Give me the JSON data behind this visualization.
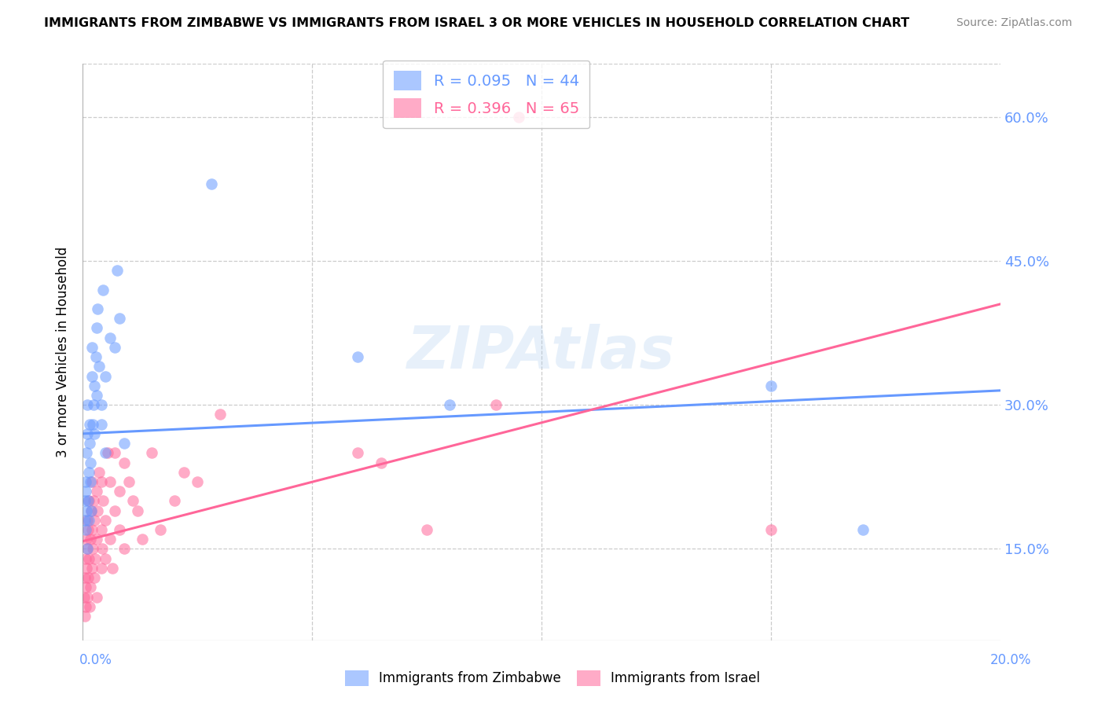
{
  "title": "IMMIGRANTS FROM ZIMBABWE VS IMMIGRANTS FROM ISRAEL 3 OR MORE VEHICLES IN HOUSEHOLD CORRELATION CHART",
  "source": "Source: ZipAtlas.com",
  "ylabel": "3 or more Vehicles in Household",
  "ytick_values": [
    0.15,
    0.3,
    0.45,
    0.6
  ],
  "xlim": [
    0.0,
    0.2
  ],
  "ylim": [
    0.055,
    0.655
  ],
  "color_zimbabwe": "#6699ff",
  "color_israel": "#ff6699",
  "zim_trend_x0": 0.0,
  "zim_trend_y0": 0.27,
  "zim_trend_x1": 0.2,
  "zim_trend_y1": 0.315,
  "isr_trend_x0": 0.0,
  "isr_trend_y0": 0.158,
  "isr_trend_x1": 0.2,
  "isr_trend_y1": 0.405,
  "zim_x": [
    0.0004,
    0.0005,
    0.0006,
    0.0007,
    0.0007,
    0.0008,
    0.0009,
    0.001,
    0.001,
    0.001,
    0.0012,
    0.0013,
    0.0014,
    0.0015,
    0.0015,
    0.0016,
    0.0017,
    0.0018,
    0.002,
    0.002,
    0.0022,
    0.0023,
    0.0025,
    0.0025,
    0.0028,
    0.003,
    0.003,
    0.0032,
    0.0035,
    0.004,
    0.004,
    0.0045,
    0.005,
    0.005,
    0.006,
    0.007,
    0.0075,
    0.008,
    0.009,
    0.028,
    0.06,
    0.08,
    0.15,
    0.17
  ],
  "zim_y": [
    0.18,
    0.2,
    0.22,
    0.17,
    0.21,
    0.19,
    0.25,
    0.15,
    0.27,
    0.3,
    0.2,
    0.23,
    0.18,
    0.26,
    0.28,
    0.22,
    0.24,
    0.19,
    0.33,
    0.36,
    0.28,
    0.3,
    0.27,
    0.32,
    0.35,
    0.31,
    0.38,
    0.4,
    0.34,
    0.3,
    0.28,
    0.42,
    0.25,
    0.33,
    0.37,
    0.36,
    0.44,
    0.39,
    0.26,
    0.53,
    0.35,
    0.3,
    0.32,
    0.17
  ],
  "isr_x": [
    0.0003,
    0.0004,
    0.0005,
    0.0006,
    0.0006,
    0.0007,
    0.0008,
    0.0009,
    0.001,
    0.001,
    0.001,
    0.0011,
    0.0012,
    0.0013,
    0.0014,
    0.0015,
    0.0016,
    0.0017,
    0.0018,
    0.002,
    0.002,
    0.002,
    0.0022,
    0.0023,
    0.0025,
    0.0025,
    0.0027,
    0.003,
    0.003,
    0.003,
    0.0032,
    0.0035,
    0.004,
    0.004,
    0.004,
    0.0042,
    0.0045,
    0.005,
    0.005,
    0.0055,
    0.006,
    0.006,
    0.0065,
    0.007,
    0.007,
    0.008,
    0.008,
    0.009,
    0.009,
    0.01,
    0.011,
    0.012,
    0.013,
    0.015,
    0.017,
    0.02,
    0.022,
    0.025,
    0.03,
    0.06,
    0.065,
    0.075,
    0.09,
    0.095,
    0.15
  ],
  "isr_y": [
    0.1,
    0.08,
    0.12,
    0.09,
    0.14,
    0.11,
    0.16,
    0.13,
    0.1,
    0.15,
    0.18,
    0.12,
    0.17,
    0.2,
    0.14,
    0.09,
    0.16,
    0.11,
    0.19,
    0.13,
    0.17,
    0.22,
    0.15,
    0.2,
    0.12,
    0.18,
    0.14,
    0.1,
    0.16,
    0.21,
    0.19,
    0.23,
    0.13,
    0.17,
    0.22,
    0.15,
    0.2,
    0.14,
    0.18,
    0.25,
    0.16,
    0.22,
    0.13,
    0.19,
    0.25,
    0.21,
    0.17,
    0.15,
    0.24,
    0.22,
    0.2,
    0.19,
    0.16,
    0.25,
    0.17,
    0.2,
    0.23,
    0.22,
    0.29,
    0.25,
    0.24,
    0.17,
    0.3,
    0.6,
    0.17
  ]
}
